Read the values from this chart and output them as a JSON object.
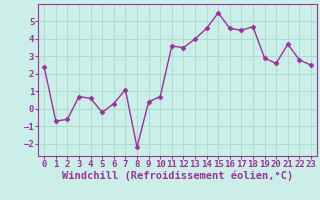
{
  "x": [
    0,
    1,
    2,
    3,
    4,
    5,
    6,
    7,
    8,
    9,
    10,
    11,
    12,
    13,
    14,
    15,
    16,
    17,
    18,
    19,
    20,
    21,
    22,
    23
  ],
  "y": [
    2.4,
    -0.7,
    -0.6,
    0.7,
    0.6,
    -0.2,
    0.3,
    1.1,
    -2.2,
    0.4,
    0.7,
    3.6,
    3.5,
    4.0,
    4.6,
    5.5,
    4.6,
    4.5,
    4.7,
    2.9,
    2.6,
    3.7,
    2.8,
    2.5
  ],
  "line_color": "#993399",
  "marker": "D",
  "marker_size": 2.5,
  "background_color": "#cceee8",
  "grid_color": "#aaddcc",
  "xlabel": "Windchill (Refroidissement éolien,°C)",
  "xlim": [
    -0.5,
    23.5
  ],
  "ylim": [
    -2.7,
    6.0
  ],
  "yticks": [
    -2,
    -1,
    0,
    1,
    2,
    3,
    4,
    5
  ],
  "xticks": [
    0,
    1,
    2,
    3,
    4,
    5,
    6,
    7,
    8,
    9,
    10,
    11,
    12,
    13,
    14,
    15,
    16,
    17,
    18,
    19,
    20,
    21,
    22,
    23
  ],
  "tick_labelsize": 6.5,
  "xlabel_fontsize": 7.5,
  "line_width": 1.0
}
